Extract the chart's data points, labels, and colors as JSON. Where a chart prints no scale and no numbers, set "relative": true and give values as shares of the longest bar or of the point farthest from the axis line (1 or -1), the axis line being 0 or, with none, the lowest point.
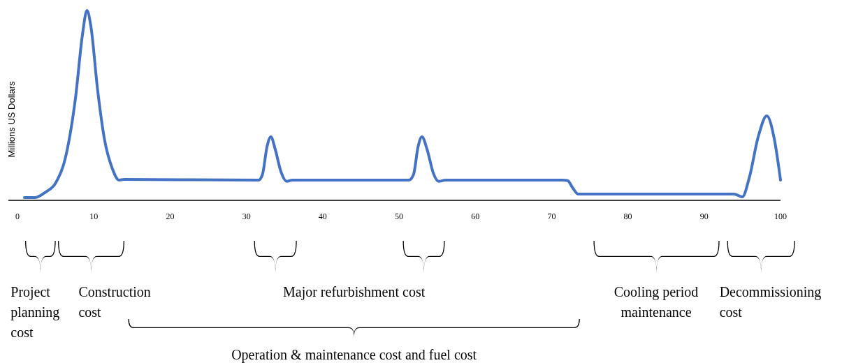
{
  "chart_data": {
    "type": "line",
    "relative": true,
    "ylabel": "Millions US Dollars",
    "xlim": [
      -1.2,
      100
    ],
    "xticks": [
      0,
      10,
      20,
      30,
      40,
      50,
      60,
      70,
      80,
      90,
      100
    ],
    "grid": false,
    "marker": "none",
    "line_style": "solid",
    "series": [
      {
        "color": "#4472c4",
        "x": [
          0.9,
          2.3,
          3.7,
          5.0,
          6.4,
          7.6,
          8.5,
          9.1,
          9.6,
          10.5,
          11.4,
          12.4,
          13.3,
          14.0,
          31.6,
          32.1,
          32.7,
          33.2,
          33.8,
          34.5,
          35.3,
          36.0,
          51.3,
          51.9,
          52.5,
          53.0,
          53.7,
          54.5,
          55.2,
          56.1,
          71.4,
          72.1,
          72.8,
          73.5,
          74.6,
          93.9,
          95.0,
          95.9,
          97.1,
          98.2,
          99.2,
          100
        ],
        "values": [
          0.015,
          0.015,
          0.044,
          0.092,
          0.246,
          0.54,
          0.87,
          1,
          0.92,
          0.58,
          0.32,
          0.17,
          0.107,
          0.11,
          0.107,
          0.136,
          0.283,
          0.335,
          0.265,
          0.154,
          0.1,
          0.107,
          0.107,
          0.136,
          0.283,
          0.335,
          0.265,
          0.143,
          0.1,
          0.107,
          0.107,
          0.104,
          0.063,
          0.033,
          0.033,
          0.033,
          0.018,
          0.118,
          0.338,
          0.445,
          0.32,
          0.107
        ]
      }
    ],
    "annotations": [
      "Project\nplanning\ncost",
      "Construction\ncost",
      "Major refurbishment cost",
      "Operation & maintenance cost and fuel cost",
      "Cooling period\nmaintenance",
      "Decommissioning\ncost"
    ]
  }
}
